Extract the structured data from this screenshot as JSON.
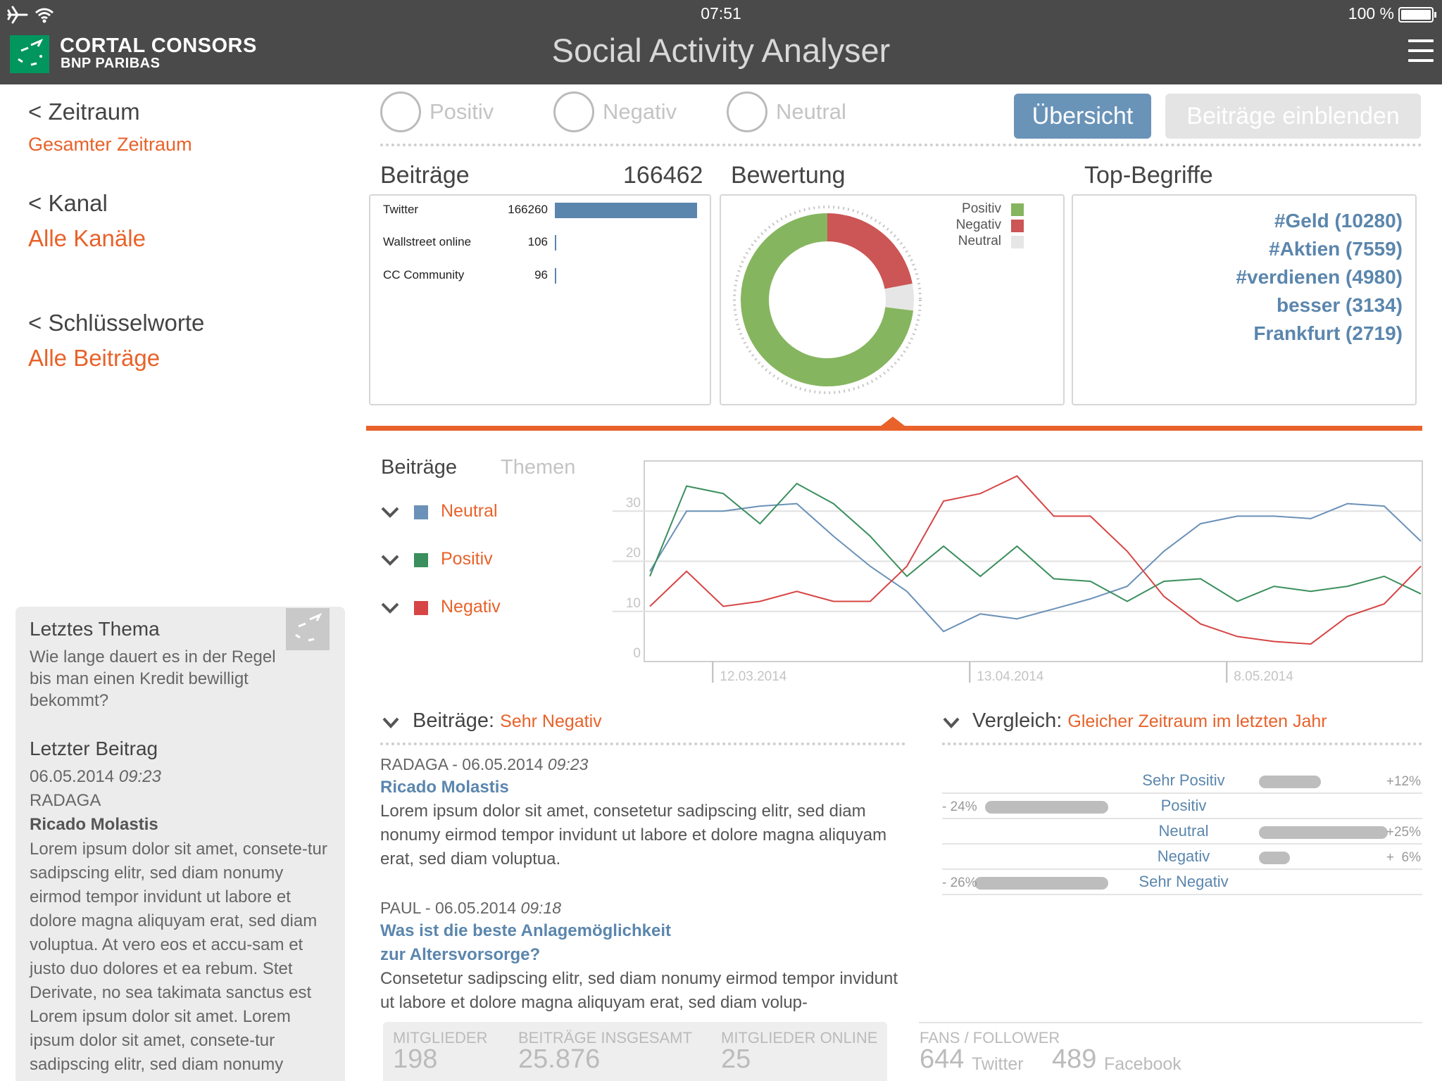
{
  "status": {
    "time": "07:51",
    "battery": "100 %"
  },
  "header": {
    "logo_line1": "CORTAL CONSORS",
    "logo_line2": "BNP PARIBAS",
    "title": "Social Activity Analyser"
  },
  "sidebar": {
    "period_title": "< Zeitraum",
    "period_value": "Gesamter Zeitraum",
    "channel_title": "< Kanal",
    "channel_value": "Alle Kanäle",
    "keywords_title": "< Schlüsselworte",
    "keywords_value": "Alle Beiträge",
    "last_topic_heading": "Letztes Thema",
    "last_topic_text": "Wie lange dauert es in der Regel bis man einen Kredit bewilligt bekommt?",
    "last_post_heading": "Letzter Beitrag",
    "last_post_date": "06.05.2014",
    "last_post_time": "09:23",
    "last_post_source": "RADAGA",
    "last_post_author": "Ricado Molastis",
    "last_post_body": "Lorem ipsum dolor sit amet, consete-tur sadipscing elitr, sed diam nonumy eirmod tempor invidunt ut labore et dolore magna aliquyam erat, sed diam voluptua. At vero eos et accu-sam et justo duo dolores et ea rebum. Stet Derivate, no sea takimata sanctus est Lorem ipsum dolor sit amet. Lorem ipsum dolor sit amet, consete-tur sadipscing elitr, sed diam nonumy"
  },
  "filters": {
    "positive": "Positiv",
    "negative": "Negativ",
    "neutral": "Neutral",
    "overview_button": "Übersicht",
    "show_posts_button": "Beiträge einblenden"
  },
  "posts_panel": {
    "title": "Beiträge",
    "total": "166462",
    "sources": [
      {
        "name": "Twitter",
        "value": "166260",
        "count": 166260
      },
      {
        "name": "Wallstreet online",
        "value": "106",
        "count": 106
      },
      {
        "name": "CC Community",
        "value": "96",
        "count": 96
      }
    ]
  },
  "rating_panel": {
    "title": "Bewertung",
    "legend": [
      {
        "name": "Positiv",
        "color": "#86b55f"
      },
      {
        "name": "Negativ",
        "color": "#cc5555"
      },
      {
        "name": "Neutral",
        "color": "#e6e6e6"
      }
    ],
    "shares": {
      "positiv": 0.73,
      "negativ": 0.22,
      "neutral": 0.05
    }
  },
  "terms_panel": {
    "title": "Top-Begriffe",
    "terms": [
      "#Geld (10280)",
      "#Aktien (7559)",
      "#verdienen (4980)",
      "besser (3134)",
      "Frankfurt (2719)"
    ]
  },
  "chart_tabs": {
    "active": "Beiträge",
    "inactive": "Themen"
  },
  "chart_data": {
    "type": "line",
    "x_ticks": [
      "12.03.2014",
      "13.04.2014",
      "8.05.2014"
    ],
    "y_ticks": [
      "0",
      "10",
      "20",
      "30"
    ],
    "ylim": [
      0,
      40
    ],
    "grid": true,
    "series": [
      {
        "name": "Neutral",
        "color": "#6b91b8",
        "values": [
          18,
          30,
          30,
          31,
          31.5,
          25,
          19,
          14,
          6,
          9.5,
          8.5,
          10.5,
          12.5,
          15,
          22,
          27.5,
          29,
          29,
          28.5,
          31.5,
          31,
          24
        ]
      },
      {
        "name": "Positiv",
        "color": "#3a8f5d",
        "values": [
          17,
          35,
          33.5,
          27.5,
          35.5,
          31.5,
          25,
          17,
          23,
          17,
          23,
          16.5,
          16,
          12,
          16,
          16.5,
          12,
          15,
          14,
          15,
          17,
          13.5
        ]
      },
      {
        "name": "Negativ",
        "color": "#d64545",
        "values": [
          11,
          18,
          11,
          12,
          14,
          12,
          12,
          19,
          32,
          33.5,
          37,
          29,
          29,
          22,
          13,
          7.5,
          5,
          4,
          3.5,
          9,
          11.5,
          19
        ]
      }
    ]
  },
  "beitraege_section": {
    "label": "Beiträge:",
    "filter": "Sehr Negativ"
  },
  "posts": [
    {
      "source": "RADAGA - 06.05.2014",
      "time": "09:23",
      "title_line1": "Ricado Molastis",
      "title_line2": "",
      "body": "Lorem ipsum dolor sit amet, consetetur sadipscing elitr, sed diam nonumy eirmod tempor invidunt ut labore et dolore magna aliquyam erat, sed diam voluptua."
    },
    {
      "source": "PAUL - 06.05.2014",
      "time": "09:18",
      "title_line1": "Was ist die beste Anlagemöglichkeit",
      "title_line2": "zur Altersvorsorge?",
      "body": "Consetetur sadipscing elitr, sed diam nonumy eirmod tempor invidunt ut labore et dolore magna aliquyam erat, sed diam volup-"
    }
  ],
  "comparison": {
    "label": "Vergleich:",
    "filter": "Gleicher Zeitraum im letzten Jahr",
    "rows": [
      {
        "label": "Sehr Positiv",
        "neg": "",
        "pos": "+12%",
        "value": 12
      },
      {
        "label": "Positiv",
        "neg": "- 24%",
        "pos": "",
        "value": -24
      },
      {
        "label": "Neutral",
        "neg": "",
        "pos": "+25%",
        "value": 25
      },
      {
        "label": "Negativ",
        "neg": "",
        "pos": "+  6%",
        "value": 6
      },
      {
        "label": "Sehr Negativ",
        "neg": "- 26%",
        "pos": "",
        "value": -26
      }
    ]
  },
  "community_stats": {
    "members_label": "MITGLIEDER",
    "members": "198",
    "posts_label": "BEITRÄGE INSGESAMT",
    "posts": "25.876",
    "online_label": "MITGLIEDER ONLINE",
    "online": "25"
  },
  "fans": {
    "label": "FANS / FOLLOWER",
    "twitter_count": "644",
    "twitter_label": "Twitter",
    "facebook_count": "489",
    "facebook_label": "Facebook"
  }
}
